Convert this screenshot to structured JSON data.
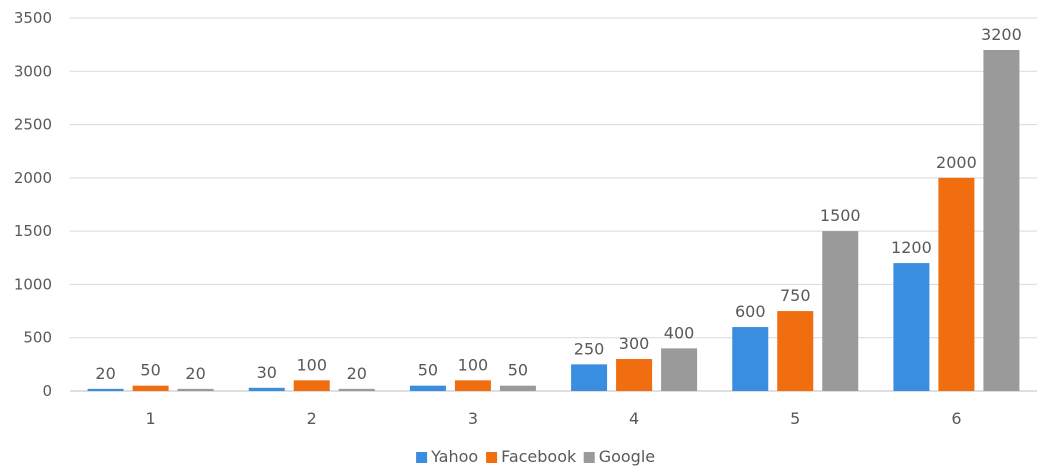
{
  "chart_data": {
    "type": "bar",
    "categories": [
      "1",
      "2",
      "3",
      "4",
      "5",
      "6"
    ],
    "series": [
      {
        "name": "Yahoo",
        "values": [
          20,
          30,
          50,
          250,
          600,
          1200
        ],
        "color": "#3a8ee0"
      },
      {
        "name": "Facebook",
        "values": [
          50,
          100,
          100,
          300,
          750,
          2000
        ],
        "color": "#f06d10"
      },
      {
        "name": "Google",
        "values": [
          20,
          20,
          50,
          400,
          1500,
          3200
        ],
        "color": "#9a9a9a"
      }
    ],
    "y_ticks": [
      "0",
      "500",
      "1000",
      "1500",
      "2000",
      "2500",
      "3000",
      "3500"
    ],
    "ylim": [
      0,
      3500
    ],
    "grid": true,
    "legend_position": "bottom",
    "data_labels": true
  }
}
